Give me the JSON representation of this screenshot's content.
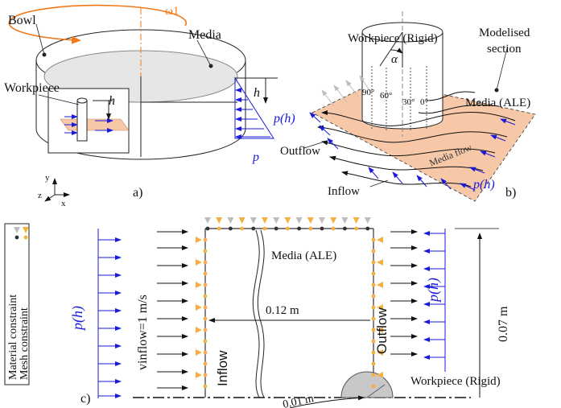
{
  "panel_a": {
    "bowl_label": "Bowl",
    "omega_label": "ω1",
    "media_label": "Media",
    "workpiece_label": "Workpiece",
    "h_inner": "h",
    "h_outer": "h",
    "p_h": "p(h)",
    "p": "p",
    "axis_y": "y",
    "axis_z": "z",
    "axis_x": "x",
    "panel_id": "a)"
  },
  "panel_b": {
    "workpiece_label": "Workpiece (Rigid)",
    "modelised_line1": "Modelised",
    "modelised_line2": "section",
    "alpha": "α",
    "angle_90": "90°",
    "angle_60": "60°",
    "angle_30": "30°",
    "angle_0": "0°",
    "media_ale": "Media (ALE)",
    "outflow": "Outflow",
    "media_flow": "Media flow",
    "inflow": "Inflow",
    "p_h": "p(h)",
    "panel_id": "b)"
  },
  "panel_c": {
    "legend_material": "Material constraint",
    "legend_mesh": "Mesh constraint",
    "p_h_left": "p(h)",
    "v_inflow": "vinflow=1 m/s",
    "media_ale": "Media (ALE)",
    "inflow": "Inflow",
    "outflow": "Outflow",
    "dim_012": "0.12 m",
    "p_h_right": "p(h)",
    "dim_007": "0.07 m",
    "workpiece_label": "Workpiece (Rigid)",
    "dim_001": "0.01 m",
    "panel_id": "c)"
  },
  "colors": {
    "orange": "#f07a1a",
    "blue": "#1a1ad8",
    "peach": "#f6c8a8",
    "triangle": "#f5b041",
    "gray": "#bdbdbd"
  }
}
